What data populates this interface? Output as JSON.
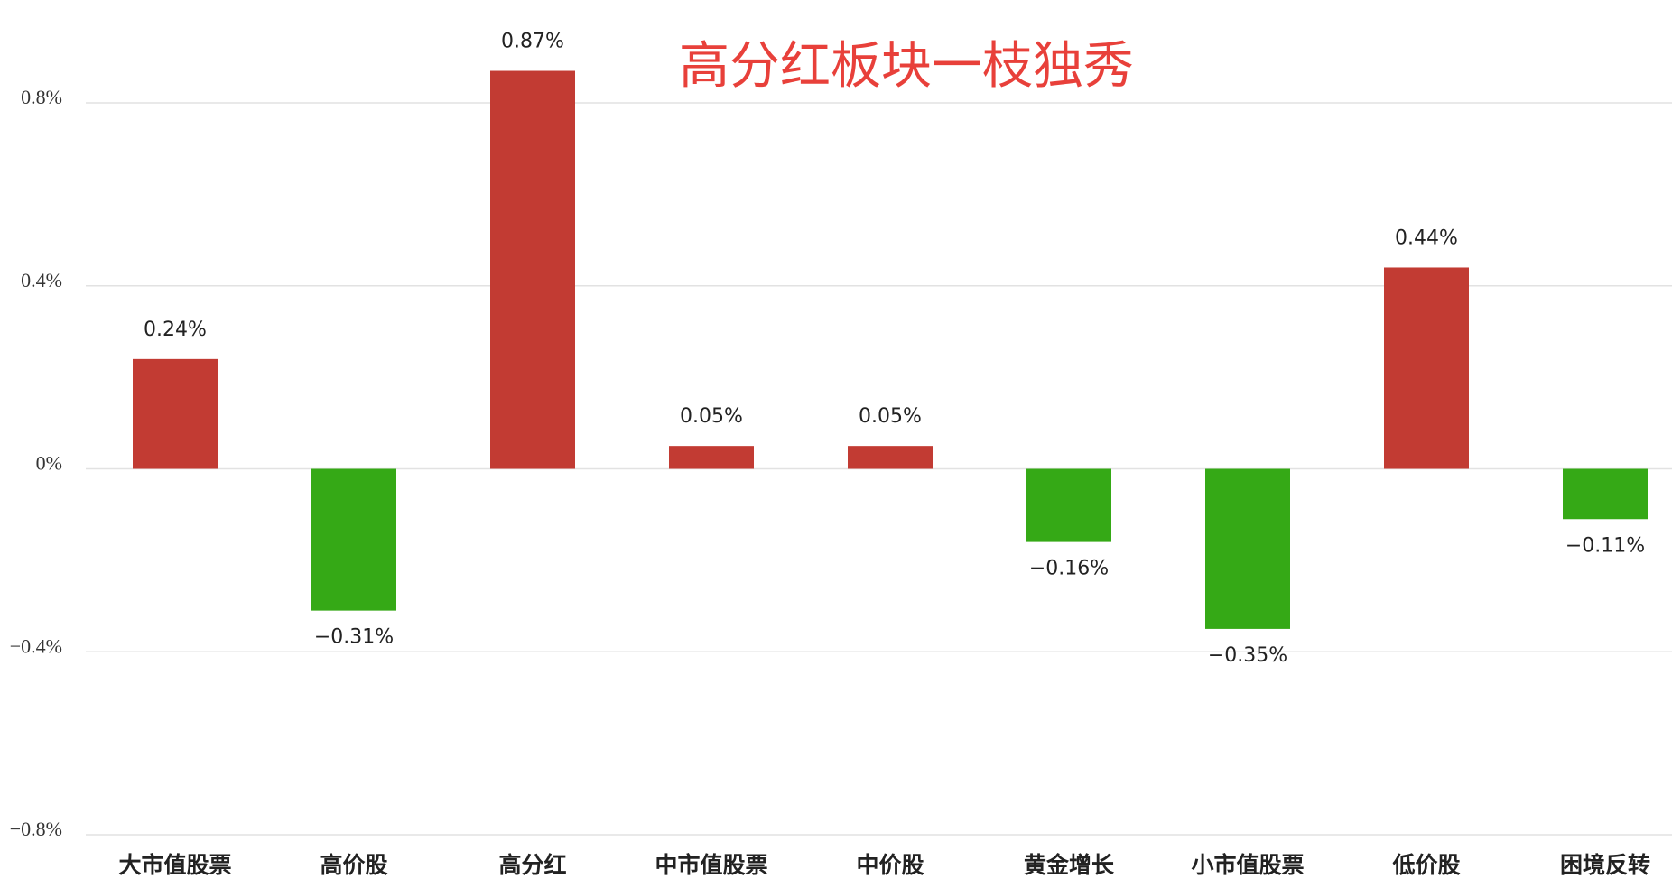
{
  "chart_data": {
    "type": "bar",
    "title": "高分红板块一枝独秀",
    "categories": [
      "大市值股票",
      "高价股",
      "高分红",
      "中市值股票",
      "中价股",
      "黄金增长",
      "小市值股票",
      "低价股",
      "困境反转"
    ],
    "values": [
      0.24,
      -0.31,
      0.87,
      0.05,
      0.05,
      -0.16,
      -0.35,
      0.44,
      -0.11
    ],
    "value_labels": [
      "0.24%",
      "−0.31%",
      "0.87%",
      "0.05%",
      "0.05%",
      "−0.16%",
      "−0.35%",
      "0.44%",
      "−0.11%"
    ],
    "colors": [
      "#c23b33",
      "#35a916",
      "#c23b33",
      "#c23b33",
      "#c23b33",
      "#35a916",
      "#35a916",
      "#c23b33",
      "#35a916"
    ],
    "ylim": [
      -0.8,
      0.8
    ],
    "yticks": [
      {
        "value": -0.8,
        "label": "−0.8%"
      },
      {
        "value": -0.4,
        "label": "−0.4%"
      },
      {
        "value": 0,
        "label": "0%"
      },
      {
        "value": 0.4,
        "label": "0.4%"
      },
      {
        "value": 0.8,
        "label": "0.8%"
      }
    ],
    "grid": true
  }
}
